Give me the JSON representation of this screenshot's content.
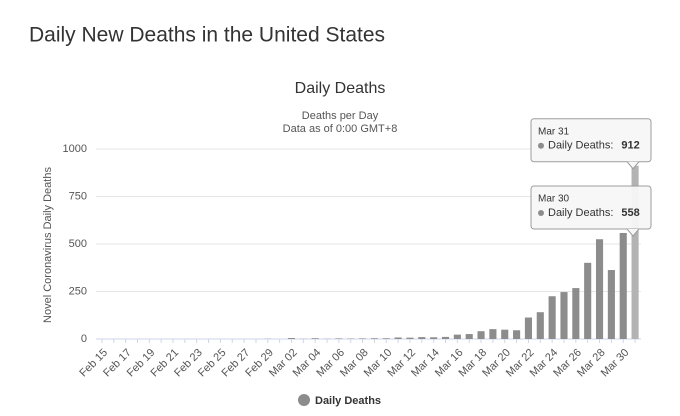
{
  "header": {
    "title": "Daily New Deaths in the United States"
  },
  "chart_data": {
    "type": "bar",
    "title": "Daily Deaths",
    "subtitle": [
      "Deaths per Day",
      "Data as of 0:00 GMT+8"
    ],
    "y_label": "Novel Coronavirus Daily Deaths",
    "categories": [
      "Feb 15",
      null,
      "Feb 17",
      null,
      "Feb 19",
      null,
      "Feb 21",
      null,
      "Feb 23",
      null,
      "Feb 25",
      null,
      "Feb 27",
      null,
      "Feb 29",
      null,
      "Mar 02",
      null,
      "Mar 04",
      null,
      "Mar 06",
      null,
      "Mar 08",
      null,
      "Mar 10",
      null,
      "Mar 12",
      null,
      "Mar 14",
      null,
      "Mar 16",
      null,
      "Mar 18",
      null,
      "Mar 20",
      null,
      "Mar 22",
      null,
      "Mar 24",
      null,
      "Mar 26",
      null,
      "Mar 28",
      null,
      "Mar 30",
      null
    ],
    "series": [
      {
        "name": "Daily Deaths",
        "color": "#8c8c8c",
        "values": [
          0,
          0,
          0,
          0,
          0,
          0,
          0,
          0,
          0,
          0,
          0,
          0,
          0,
          0,
          1,
          0,
          5,
          1,
          4,
          1,
          3,
          2,
          3,
          4,
          4,
          8,
          7,
          10,
          9,
          11,
          23,
          26,
          41,
          52,
          49,
          46,
          113,
          141,
          225,
          247,
          268,
          401,
          525,
          363,
          558,
          912
        ]
      }
    ],
    "ylim": [
      0,
      1000
    ],
    "yticks": [
      0,
      250,
      500,
      750,
      1000
    ],
    "grid": true,
    "highlight_color": "#b3b3b3",
    "tooltips": [
      {
        "date": "Mar 31",
        "series": "Daily Deaths",
        "value": 912,
        "index": 45
      },
      {
        "date": "Mar 30",
        "series": "Daily Deaths",
        "value": 558,
        "index": 44
      }
    ]
  }
}
